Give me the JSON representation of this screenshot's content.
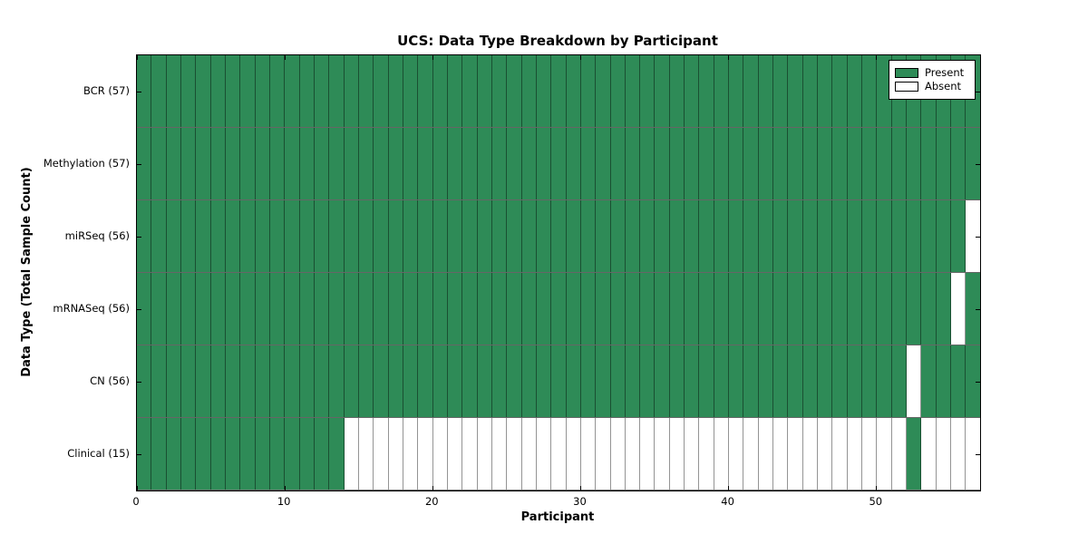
{
  "chart_data": {
    "type": "heatmap",
    "title": "UCS: Data Type Breakdown by Participant",
    "xlabel": "Participant",
    "ylabel": "Data Type (Total Sample Count)",
    "n_participants": 57,
    "xlim": [
      0,
      57
    ],
    "xticks": [
      0,
      10,
      20,
      30,
      40,
      50
    ],
    "grid": "cell-edges",
    "legend_position": "upper right",
    "legend": [
      {
        "label": "Present",
        "color": "#2E8B57"
      },
      {
        "label": "Absent",
        "color": "#FFFFFF"
      }
    ],
    "rows": [
      {
        "label": "BCR (57)",
        "data_type": "BCR",
        "sample_count": 57,
        "absent_participants": []
      },
      {
        "label": "Methylation (57)",
        "data_type": "Methylation",
        "sample_count": 57,
        "absent_participants": []
      },
      {
        "label": "miRSeq (56)",
        "data_type": "miRSeq",
        "sample_count": 56,
        "absent_participants": [
          56
        ]
      },
      {
        "label": "mRNASeq (56)",
        "data_type": "mRNASeq",
        "sample_count": 56,
        "absent_participants": [
          55
        ]
      },
      {
        "label": "CN (56)",
        "data_type": "CN",
        "sample_count": 56,
        "absent_participants": [
          52
        ]
      },
      {
        "label": "Clinical (15)",
        "data_type": "Clinical",
        "sample_count": 15,
        "absent_participants": [
          14,
          15,
          16,
          17,
          18,
          19,
          20,
          21,
          22,
          23,
          24,
          25,
          26,
          27,
          28,
          29,
          30,
          31,
          32,
          33,
          34,
          35,
          36,
          37,
          38,
          39,
          40,
          41,
          42,
          43,
          44,
          45,
          46,
          47,
          48,
          49,
          50,
          51,
          53,
          54,
          55,
          56
        ]
      }
    ],
    "colors": {
      "present": "#2E8B57",
      "absent": "#FFFFFF",
      "cell_edge": "rgba(0,0,0,0.42)",
      "axis": "#000000"
    }
  }
}
